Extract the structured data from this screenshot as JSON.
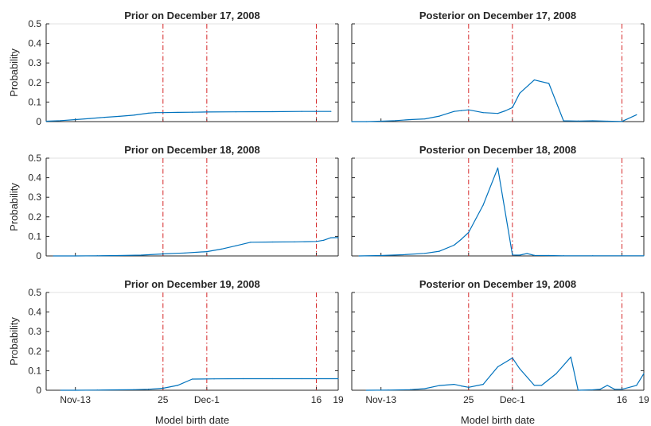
{
  "chart_data": [
    {
      "type": "line",
      "title": "Prior on December 17, 2008",
      "ylabel": "Probability",
      "xlabel": "",
      "ylim": [
        0,
        0.5
      ],
      "yticks": [
        "0",
        "0.1",
        "0.2",
        "0.3",
        "0.4",
        "0.5"
      ],
      "xticks": [],
      "vlines": [
        "2008-11-25",
        "2008-12-01",
        "2008-12-16"
      ],
      "series": [
        {
          "x": [
            "2008-11-09",
            "2008-11-11",
            "2008-11-13",
            "2008-11-15",
            "2008-11-17",
            "2008-11-19",
            "2008-11-21",
            "2008-11-23",
            "2008-11-24",
            "2008-11-25",
            "2008-11-27",
            "2008-11-29",
            "2008-12-01",
            "2008-12-05",
            "2008-12-10",
            "2008-12-14",
            "2008-12-16",
            "2008-12-18"
          ],
          "y": [
            0.002,
            0.005,
            0.01,
            0.016,
            0.022,
            0.027,
            0.033,
            0.043,
            0.046,
            0.046,
            0.047,
            0.048,
            0.049,
            0.05,
            0.051,
            0.052,
            0.052,
            0.052
          ]
        }
      ]
    },
    {
      "type": "line",
      "title": "Posterior on December 17, 2008",
      "ylabel": "",
      "xlabel": "",
      "ylim": [
        0,
        0.5
      ],
      "yticks": [],
      "xticks": [],
      "vlines": [
        "2008-11-25",
        "2008-12-01",
        "2008-12-16"
      ],
      "series": [
        {
          "x": [
            "2008-11-09",
            "2008-11-11",
            "2008-11-13",
            "2008-11-15",
            "2008-11-17",
            "2008-11-19",
            "2008-11-21",
            "2008-11-23",
            "2008-11-24",
            "2008-11-25",
            "2008-11-27",
            "2008-11-29",
            "2008-11-30",
            "2008-12-01",
            "2008-12-02",
            "2008-12-04",
            "2008-12-06",
            "2008-12-08",
            "2008-12-10",
            "2008-12-12",
            "2008-12-14",
            "2008-12-16",
            "2008-12-18"
          ],
          "y": [
            0.0,
            0.0,
            0.002,
            0.005,
            0.01,
            0.014,
            0.028,
            0.052,
            0.056,
            0.06,
            0.046,
            0.042,
            0.055,
            0.072,
            0.145,
            0.213,
            0.195,
            0.004,
            0.003,
            0.004,
            0.002,
            0.001,
            0.035
          ]
        }
      ]
    },
    {
      "type": "line",
      "title": "Prior on December 18, 2008",
      "ylabel": "Probability",
      "xlabel": "",
      "ylim": [
        0,
        0.5
      ],
      "yticks": [
        "0",
        "0.1",
        "0.2",
        "0.3",
        "0.4",
        "0.5"
      ],
      "xticks": [],
      "vlines": [
        "2008-11-25",
        "2008-12-01",
        "2008-12-16"
      ],
      "series": [
        {
          "x": [
            "2008-11-10",
            "2008-11-13",
            "2008-11-16",
            "2008-11-19",
            "2008-11-22",
            "2008-11-25",
            "2008-11-28",
            "2008-12-01",
            "2008-12-03",
            "2008-12-05",
            "2008-12-07",
            "2008-12-10",
            "2008-12-13",
            "2008-12-16",
            "2008-12-17",
            "2008-12-18",
            "2008-12-19"
          ],
          "y": [
            0.0,
            0.0,
            0.001,
            0.002,
            0.004,
            0.01,
            0.015,
            0.022,
            0.035,
            0.052,
            0.07,
            0.071,
            0.072,
            0.074,
            0.08,
            0.093,
            0.094
          ]
        }
      ]
    },
    {
      "type": "line",
      "title": "Posterior on December 18, 2008",
      "ylabel": "",
      "xlabel": "",
      "ylim": [
        0,
        0.5
      ],
      "yticks": [],
      "xticks": [],
      "vlines": [
        "2008-11-25",
        "2008-12-01",
        "2008-12-16"
      ],
      "series": [
        {
          "x": [
            "2008-11-10",
            "2008-11-13",
            "2008-11-16",
            "2008-11-19",
            "2008-11-21",
            "2008-11-23",
            "2008-11-24",
            "2008-11-25",
            "2008-11-27",
            "2008-11-29",
            "2008-12-01",
            "2008-12-02",
            "2008-12-03",
            "2008-12-04",
            "2008-12-06",
            "2008-12-08",
            "2008-12-12",
            "2008-12-16",
            "2008-12-19"
          ],
          "y": [
            0.0,
            0.002,
            0.006,
            0.013,
            0.024,
            0.055,
            0.085,
            0.12,
            0.26,
            0.45,
            0.005,
            0.004,
            0.012,
            0.003,
            0.002,
            0.001,
            0.001,
            0.001,
            0.001
          ]
        }
      ]
    },
    {
      "type": "line",
      "title": "Prior on December 19, 2008",
      "ylabel": "Probability",
      "xlabel": "Model birth date",
      "ylim": [
        0,
        0.5
      ],
      "yticks": [
        "0",
        "0.1",
        "0.2",
        "0.3",
        "0.4",
        "0.5"
      ],
      "xticks": [
        "Nov-13",
        "25",
        "Dec-1",
        "16",
        "19"
      ],
      "vlines": [
        "2008-11-25",
        "2008-12-01",
        "2008-12-16"
      ],
      "series": [
        {
          "x": [
            "2008-11-11",
            "2008-11-13",
            "2008-11-16",
            "2008-11-19",
            "2008-11-21",
            "2008-11-23",
            "2008-11-25",
            "2008-11-27",
            "2008-11-29",
            "2008-12-02",
            "2008-12-06",
            "2008-12-10",
            "2008-12-14",
            "2008-12-19"
          ],
          "y": [
            0.0,
            0.0,
            0.001,
            0.002,
            0.003,
            0.005,
            0.01,
            0.025,
            0.057,
            0.058,
            0.059,
            0.059,
            0.059,
            0.059
          ]
        }
      ]
    },
    {
      "type": "line",
      "title": "Posterior on December 19, 2008",
      "ylabel": "",
      "xlabel": "Model birth date",
      "ylim": [
        0,
        0.5
      ],
      "yticks": [],
      "xticks": [
        "Nov-13",
        "25",
        "Dec-1",
        "16",
        "19"
      ],
      "vlines": [
        "2008-11-25",
        "2008-12-01",
        "2008-12-16"
      ],
      "series": [
        {
          "x": [
            "2008-11-11",
            "2008-11-14",
            "2008-11-17",
            "2008-11-19",
            "2008-11-21",
            "2008-11-23",
            "2008-11-24",
            "2008-11-25",
            "2008-11-27",
            "2008-11-29",
            "2008-12-01",
            "2008-12-02",
            "2008-12-04",
            "2008-12-05",
            "2008-12-07",
            "2008-12-09",
            "2008-12-10",
            "2008-12-12",
            "2008-12-13",
            "2008-12-14",
            "2008-12-15",
            "2008-12-16",
            "2008-12-18",
            "2008-12-19"
          ],
          "y": [
            0.0,
            0.001,
            0.003,
            0.008,
            0.024,
            0.03,
            0.022,
            0.015,
            0.03,
            0.12,
            0.165,
            0.11,
            0.025,
            0.025,
            0.085,
            0.17,
            0.0,
            0.002,
            0.005,
            0.025,
            0.005,
            0.005,
            0.025,
            0.085
          ]
        }
      ]
    }
  ]
}
